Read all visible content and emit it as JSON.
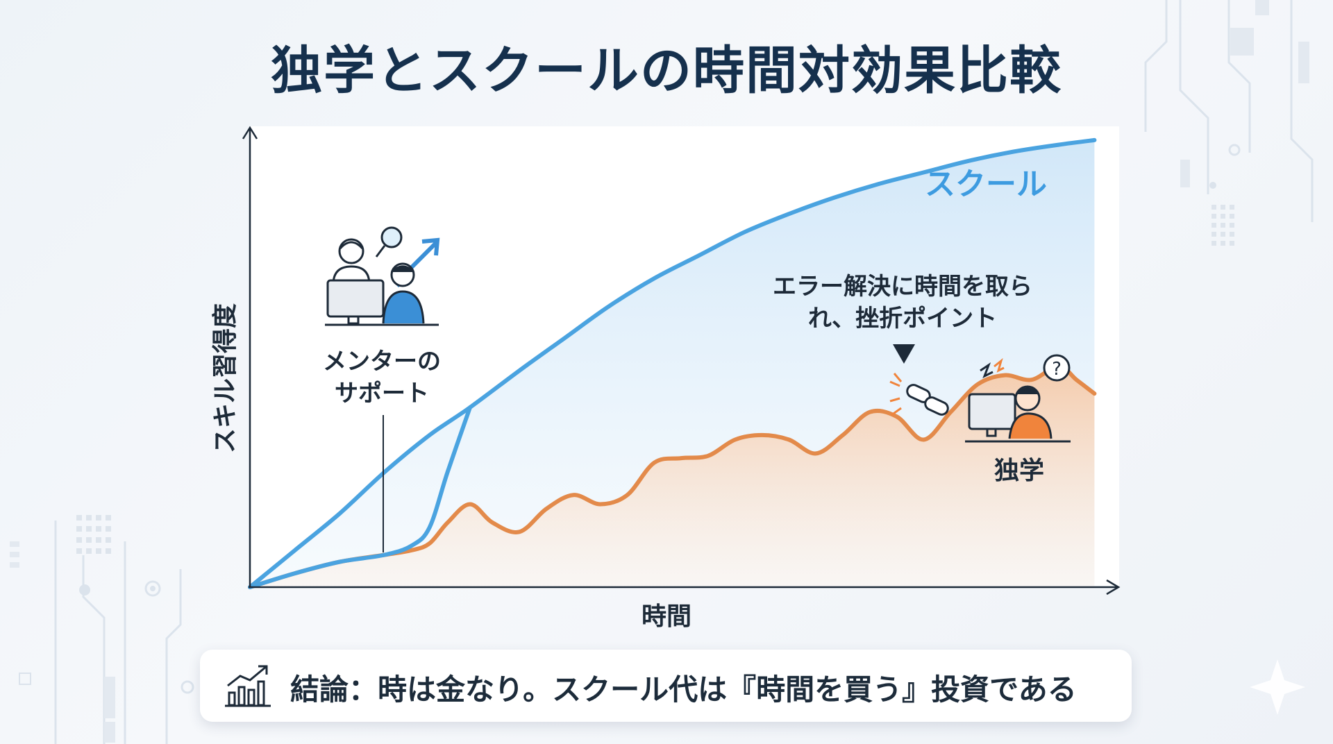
{
  "title": "独学とスクールの時間対効果比較",
  "chart_data": {
    "type": "line",
    "xlabel": "時間",
    "ylabel": "スキル習得度",
    "xlim": [
      0,
      100
    ],
    "ylim": [
      0,
      100
    ],
    "series": [
      {
        "name": "スクール",
        "color": "#4aa3e0",
        "x": [
          0,
          5,
          10,
          15,
          20,
          24.5,
          30,
          35,
          40,
          45,
          50,
          55,
          60,
          65,
          70,
          75,
          80,
          85,
          90,
          94
        ],
        "y": [
          0,
          8,
          16,
          25,
          33,
          39,
          47,
          54,
          61,
          67,
          72,
          77,
          81,
          84.5,
          87.5,
          90,
          92.5,
          94.5,
          96,
          97
        ]
      },
      {
        "name": "独学",
        "color": "#e38a4a",
        "x": [
          0,
          5,
          10,
          15,
          18,
          20,
          22,
          24.5,
          27,
          30,
          33,
          36,
          39,
          42,
          45,
          48,
          51,
          54,
          57,
          60,
          63,
          66,
          69,
          72,
          75,
          78,
          81,
          84,
          87,
          90,
          92,
          94
        ],
        "y": [
          0,
          3,
          5.5,
          7,
          8,
          9.5,
          14,
          18,
          14,
          12,
          17,
          20,
          18,
          20,
          27,
          28,
          28.5,
          32,
          33,
          32,
          29,
          33,
          38,
          37,
          32,
          38,
          44,
          46,
          45,
          48,
          45,
          42
        ]
      },
      {
        "name": "",
        "color": "#4aa3e0",
        "x": [
          0,
          5,
          10,
          15,
          18,
          20,
          22,
          24.5
        ],
        "y": [
          0,
          3,
          5.5,
          7,
          9,
          13,
          25,
          39
        ]
      }
    ]
  },
  "annotations": {
    "mentor_label_1": "メンターの",
    "mentor_label_2": "サポート",
    "error_label_1": "エラー解決に時間を取ら",
    "error_label_2": "れ、挫折ポイント",
    "school_label": "スクール",
    "self_label": "独学"
  },
  "conclusion": "結論：時は金なり。スクール代は『時間を買う』投資である",
  "icons": [
    "mentor-icon",
    "chain-broken-icon",
    "frustrated-person-icon",
    "chart-growth-icon"
  ]
}
